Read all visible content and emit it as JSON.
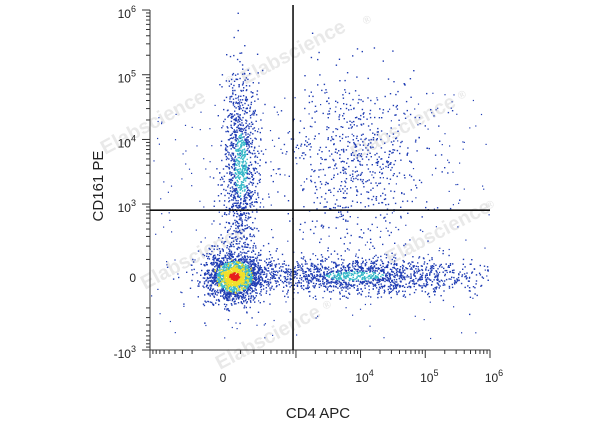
{
  "chart_data": {
    "type": "scatter",
    "title": "",
    "xlabel": "CD4 APC",
    "ylabel": "CD161 PE",
    "x_scale": "biexponential",
    "y_scale": "biexponential",
    "xlim": [
      -1000,
      1000000
    ],
    "ylim": [
      -1000,
      1000000
    ],
    "x_ticks": [
      {
        "value": 0,
        "base": "0",
        "exp": ""
      },
      {
        "value": 10000,
        "base": "10",
        "exp": "4"
      },
      {
        "value": 100000,
        "base": "10",
        "exp": "5"
      },
      {
        "value": 1000000,
        "base": "10",
        "exp": "6"
      }
    ],
    "y_ticks": [
      {
        "value": -1000,
        "base": "-10",
        "exp": "3"
      },
      {
        "value": 0,
        "base": "0",
        "exp": ""
      },
      {
        "value": 1000,
        "base": "10",
        "exp": "3"
      },
      {
        "value": 10000,
        "base": "10",
        "exp": "4"
      },
      {
        "value": 100000,
        "base": "10",
        "exp": "5"
      },
      {
        "value": 1000000,
        "base": "10",
        "exp": "6"
      }
    ],
    "quadrant_gate": {
      "x": 900,
      "y": 800
    },
    "populations": [
      {
        "name": "",
        "x": 60,
        "y": 5,
        "density": "very high"
      },
      {
        "name": "",
        "x": 100,
        "y": 4000,
        "density": "medium"
      },
      {
        "name": "",
        "x": 8000,
        "y": 10,
        "density": "high"
      },
      {
        "name": "",
        "x": 8000,
        "y": 5000,
        "density": "low"
      }
    ],
    "grid": false,
    "legend": "none",
    "colors": {
      "low": "#1f3cb3",
      "mid": "#35b8c8",
      "high": "#f2e02a",
      "peak": "#e8201c"
    }
  },
  "watermark": {
    "text": "Elabscience",
    "mark": "®"
  }
}
